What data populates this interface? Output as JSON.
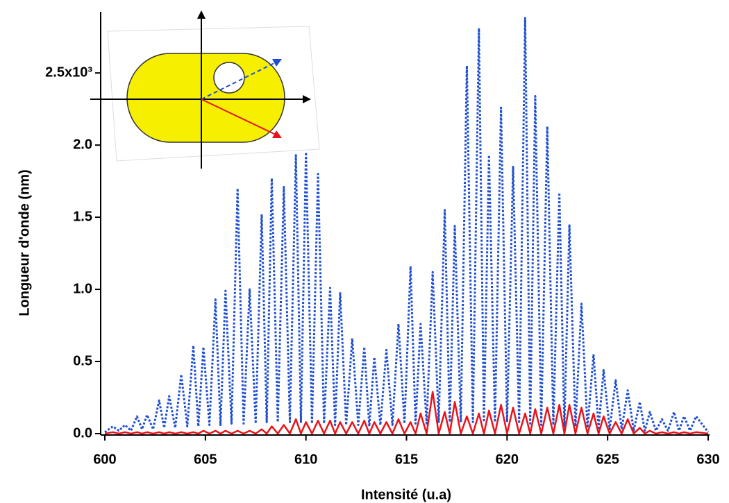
{
  "chart_data": {
    "type": "line",
    "x_label": "Intensité (u.a)",
    "y_label": "Longueur d'onde (nm)",
    "xlim": [
      600,
      630
    ],
    "xticks": [
      600,
      605,
      610,
      615,
      620,
      625,
      630
    ],
    "ylim": [
      0,
      2.9
    ],
    "yticks": [
      {
        "value": 0,
        "label": "0.0"
      },
      {
        "value": 0.5,
        "label": "0.5"
      },
      {
        "value": 1,
        "label": "1.0"
      },
      {
        "value": 1.5,
        "label": "1.5"
      },
      {
        "value": 2,
        "label": "2.0"
      },
      {
        "value": 2.5,
        "label": "2.5x10³"
      }
    ],
    "x": [
      600.0,
      600.4,
      600.7,
      601.0,
      601.3,
      601.6,
      601.85,
      602.1,
      602.4,
      602.7,
      602.95,
      603.2,
      603.5,
      603.8,
      604.1,
      604.4,
      604.65,
      604.9,
      605.2,
      605.5,
      605.75,
      606.0,
      606.3,
      606.6,
      606.9,
      607.2,
      607.5,
      607.8,
      608.05,
      608.3,
      608.6,
      608.9,
      609.2,
      609.5,
      609.75,
      610.0,
      610.3,
      610.6,
      610.9,
      611.2,
      611.45,
      611.7,
      612.0,
      612.3,
      612.6,
      612.9,
      613.15,
      613.4,
      613.7,
      614.0,
      614.3,
      614.6,
      614.9,
      615.2,
      615.45,
      615.7,
      616.0,
      616.3,
      616.6,
      616.9,
      617.15,
      617.4,
      617.7,
      618.0,
      618.3,
      618.6,
      618.85,
      619.1,
      619.4,
      619.7,
      620.0,
      620.3,
      620.6,
      620.9,
      621.15,
      621.4,
      621.7,
      622.0,
      622.3,
      622.6,
      622.85,
      623.1,
      623.4,
      623.7,
      624.0,
      624.3,
      624.55,
      624.8,
      625.1,
      625.4,
      625.7,
      626.0,
      626.3,
      626.6,
      626.85,
      627.1,
      627.4,
      627.7,
      628.0,
      628.3,
      628.55,
      628.8,
      629.1,
      629.4,
      630.0
    ],
    "series": [
      {
        "color": "#1f4fd1",
        "dashed": true,
        "values": [
          0.01,
          0.05,
          0.02,
          0.06,
          0.02,
          0.12,
          0.03,
          0.13,
          0.03,
          0.23,
          0.04,
          0.26,
          0.04,
          0.41,
          0.05,
          0.61,
          0.05,
          0.6,
          0.06,
          0.93,
          0.06,
          0.99,
          0.07,
          1.7,
          0.07,
          1.0,
          0.07,
          1.52,
          0.08,
          1.77,
          0.08,
          1.71,
          0.08,
          1.93,
          0.08,
          1.95,
          0.07,
          1.8,
          0.07,
          1.01,
          0.06,
          0.98,
          0.06,
          0.66,
          0.06,
          0.6,
          0.05,
          0.53,
          0.06,
          0.58,
          0.06,
          0.76,
          0.07,
          1.16,
          0.07,
          0.76,
          0.07,
          1.12,
          0.08,
          1.55,
          0.08,
          1.44,
          0.08,
          2.55,
          0.08,
          2.81,
          0.08,
          1.93,
          0.08,
          2.26,
          0.08,
          1.85,
          0.07,
          2.88,
          0.07,
          2.34,
          0.06,
          2.13,
          0.06,
          1.67,
          0.05,
          1.45,
          0.05,
          0.9,
          0.04,
          0.55,
          0.04,
          0.44,
          0.03,
          0.37,
          0.03,
          0.3,
          0.02,
          0.22,
          0.02,
          0.15,
          0.02,
          0.1,
          0.02,
          0.15,
          0.02,
          0.12,
          0.02,
          0.12,
          0.01
        ]
      },
      {
        "color": "#e8141b",
        "dashed": false,
        "values": [
          0,
          0.01,
          0,
          0.01,
          0,
          0.01,
          0,
          0.01,
          0,
          0.01,
          0,
          0.01,
          0,
          0.01,
          0,
          0.01,
          0,
          0.02,
          0,
          0.02,
          0,
          0.02,
          0,
          0.02,
          0,
          0.02,
          0,
          0.03,
          0,
          0.05,
          0,
          0.06,
          0,
          0.1,
          0,
          0.08,
          0,
          0.09,
          0,
          0.09,
          0,
          0.08,
          0,
          0.08,
          0,
          0.09,
          0,
          0.08,
          0,
          0.08,
          0,
          0.1,
          0,
          0.08,
          0,
          0.14,
          0,
          0.29,
          0,
          0.15,
          0,
          0.22,
          0,
          0.12,
          0,
          0.14,
          0,
          0.16,
          0,
          0.2,
          0,
          0.18,
          0,
          0.14,
          0,
          0.17,
          0,
          0.18,
          0,
          0.2,
          0,
          0.2,
          0,
          0.18,
          0,
          0.14,
          0,
          0.12,
          0,
          0.08,
          0,
          0.1,
          0,
          0.04,
          0,
          0.02,
          0,
          0.01,
          0,
          0.01,
          0,
          0.01,
          0,
          0.01,
          0
        ]
      }
    ]
  }
}
